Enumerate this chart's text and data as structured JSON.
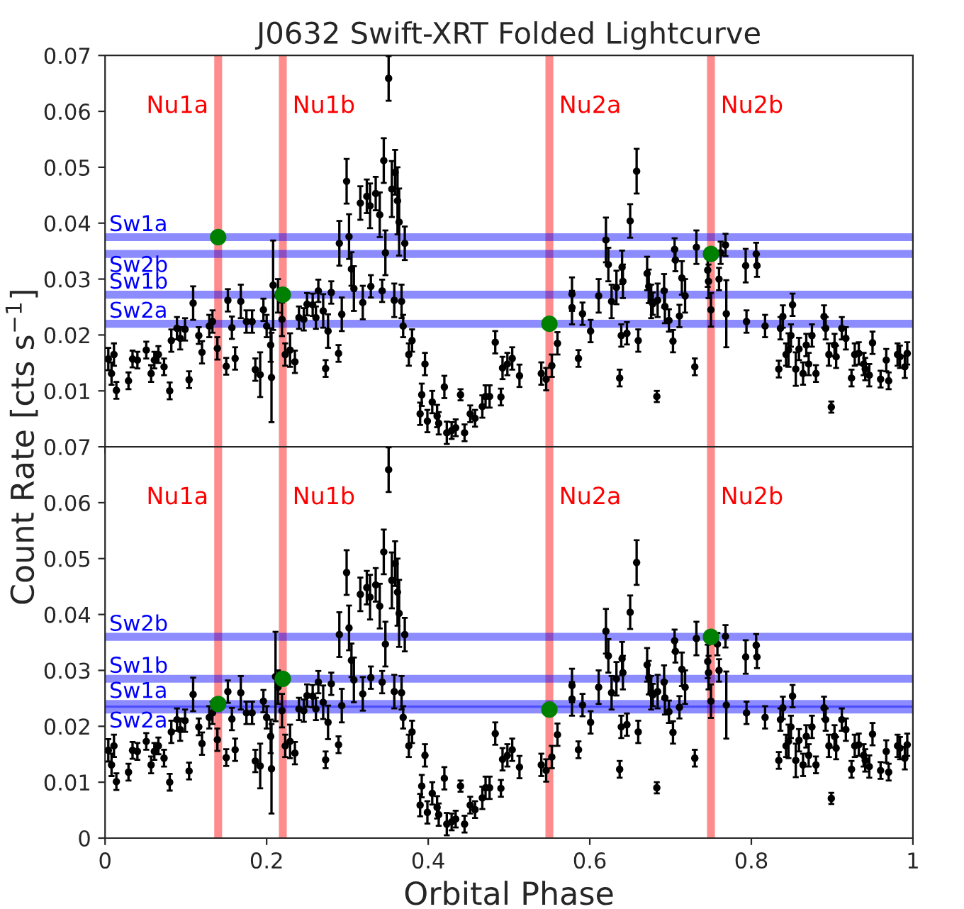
{
  "chart_data": [
    {
      "type": "scatter",
      "title": "J0632 Swift-XRT Folded Lightcurve",
      "ylabel": "Count Rate [cts s$^{−1}$]",
      "xlim": [
        0,
        1
      ],
      "ylim": [
        0,
        0.07
      ],
      "yticks": [
        0.01,
        0.02,
        0.03,
        0.04,
        0.05,
        0.06,
        0.07
      ],
      "xticks": [
        0,
        0.2,
        0.4,
        0.6,
        0.8,
        1
      ],
      "tick_labels": "y",
      "marker": "circle",
      "series": [
        {
          "color": "#000000",
          "x": [
            0.004,
            0.008,
            0.011,
            0.014,
            0.029,
            0.034,
            0.04,
            0.051,
            0.057,
            0.061,
            0.066,
            0.073,
            0.08,
            0.082,
            0.089,
            0.093,
            0.099,
            0.104,
            0.109,
            0.116,
            0.12,
            0.129,
            0.133,
            0.139,
            0.15,
            0.152,
            0.157,
            0.161,
            0.168,
            0.175,
            0.182,
            0.186,
            0.192,
            0.196,
            0.2,
            0.205,
            0.206,
            0.208,
            0.214,
            0.219,
            0.223,
            0.229,
            0.235,
            0.24,
            0.246,
            0.25,
            0.257,
            0.261,
            0.264,
            0.27,
            0.273,
            0.276,
            0.28,
            0.289,
            0.29,
            0.293,
            0.299,
            0.302,
            0.305,
            0.308,
            0.316,
            0.319,
            0.324,
            0.328,
            0.329,
            0.335,
            0.34,
            0.343,
            0.345,
            0.347,
            0.351,
            0.355,
            0.358,
            0.359,
            0.362,
            0.364,
            0.367,
            0.369,
            0.371,
            0.376,
            0.38,
            0.39,
            0.392,
            0.396,
            0.399,
            0.405,
            0.411,
            0.413,
            0.42,
            0.423,
            0.429,
            0.434,
            0.44,
            0.445,
            0.452,
            0.458,
            0.467,
            0.471,
            0.476,
            0.483,
            0.49,
            0.492,
            0.498,
            0.504,
            0.513,
            0.54,
            0.546,
            0.553,
            0.56,
            0.578,
            0.578,
            0.586,
            0.591,
            0.601,
            0.611,
            0.62,
            0.623,
            0.627,
            0.633,
            0.637,
            0.639,
            0.64,
            0.641,
            0.646,
            0.65,
            0.658,
            0.66,
            0.671,
            0.673,
            0.676,
            0.678,
            0.683,
            0.684,
            0.692,
            0.693,
            0.698,
            0.703,
            0.705,
            0.706,
            0.711,
            0.714,
            0.718,
            0.73,
            0.732,
            0.746,
            0.747,
            0.75,
            0.762,
            0.76,
            0.768,
            0.769,
            0.793,
            0.794,
            0.806,
            0.807,
            0.817,
            0.834,
            0.836,
            0.839,
            0.843,
            0.846,
            0.849,
            0.851,
            0.855,
            0.859,
            0.864,
            0.868,
            0.871,
            0.875,
            0.88,
            0.89,
            0.892,
            0.896,
            0.899,
            0.903,
            0.905,
            0.912,
            0.917,
            0.924,
            0.928,
            0.933,
            0.939,
            0.941,
            0.946,
            0.95,
            0.96,
            0.967,
            0.97,
            0.981,
            0.984,
            0.99,
            0.993
          ],
          "values": [
            0.0157,
            0.0131,
            0.0165,
            0.0101,
            0.0118,
            0.0157,
            0.0155,
            0.0173,
            0.0131,
            0.0155,
            0.0165,
            0.0143,
            0.01,
            0.019,
            0.0212,
            0.0194,
            0.021,
            0.012,
            0.0257,
            0.0199,
            0.0169,
            0.0216,
            0.0224,
            0.0176,
            0.0144,
            0.0262,
            0.0213,
            0.0158,
            0.026,
            0.0224,
            0.0224,
            0.0138,
            0.0129,
            0.0245,
            0.0216,
            0.0182,
            0.0124,
            0.0289,
            0.027,
            0.0228,
            0.0165,
            0.0173,
            0.0152,
            0.0231,
            0.0228,
            0.0255,
            0.0254,
            0.0231,
            0.0279,
            0.0243,
            0.014,
            0.0207,
            0.0276,
            0.0167,
            0.0364,
            0.0237,
            0.0475,
            0.0376,
            0.0318,
            0.0283,
            0.0436,
            0.0258,
            0.0448,
            0.0431,
            0.0287,
            0.0453,
            0.0415,
            0.0279,
            0.0512,
            0.0347,
            0.0659,
            0.0461,
            0.0262,
            0.0491,
            0.044,
            0.0402,
            0.026,
            0.0216,
            0.0364,
            0.0165,
            0.019,
            0.0059,
            0.0093,
            0.0148,
            0.0046,
            0.008,
            0.0055,
            0.0042,
            0.0107,
            0.0025,
            0.0029,
            0.0034,
            0.0093,
            0.0025,
            0.0059,
            0.0051,
            0.0072,
            0.009,
            0.009,
            0.0187,
            0.0089,
            0.0141,
            0.0148,
            0.0158,
            0.0127,
            0.0131,
            0.0121,
            0.0145,
            0.0185,
            0.0273,
            0.0249,
            0.0158,
            0.0238,
            0.0207,
            0.027,
            0.037,
            0.0326,
            0.026,
            0.0285,
            0.0123,
            0.0199,
            0.0321,
            0.0296,
            0.0203,
            0.0404,
            0.0493,
            0.019,
            0.031,
            0.0287,
            0.026,
            0.0256,
            0.009,
            0.0262,
            0.0279,
            0.0251,
            0.0226,
            0.0189,
            0.0353,
            0.0334,
            0.0234,
            0.0302,
            0.027,
            0.0143,
            0.0357,
            0.0316,
            0.0296,
            0.0245,
            0.0347,
            0.03,
            0.0361,
            0.0238,
            0.0324,
            0.0224,
            0.0345,
            0.0324,
            0.0216,
            0.0139,
            0.0212,
            0.0233,
            0.0165,
            0.0173,
            0.0199,
            0.0254,
            0.0139,
            0.0175,
            0.0131,
            0.0182,
            0.0148,
            0.0199,
            0.0131,
            0.0233,
            0.0212,
            0.0165,
            0.0071,
            0.0182,
            0.0161,
            0.0212,
            0.0194,
            0.0123,
            0.0165,
            0.0167,
            0.0148,
            0.0139,
            0.0128,
            0.0186,
            0.0121,
            0.0155,
            0.0118,
            0.0165,
            0.0161,
            0.0143,
            0.0167
          ],
          "errors": [
            0.002,
            0.002,
            0.002,
            0.0015,
            0.0015,
            0.0015,
            0.0015,
            0.0015,
            0.0015,
            0.0015,
            0.0015,
            0.0015,
            0.0015,
            0.002,
            0.002,
            0.002,
            0.002,
            0.0015,
            0.003,
            0.0015,
            0.002,
            0.002,
            0.002,
            0.002,
            0.0015,
            0.002,
            0.002,
            0.002,
            0.003,
            0.002,
            0.002,
            0.002,
            0.004,
            0.002,
            0.002,
            0.003,
            0.008,
            0.008,
            0.003,
            0.003,
            0.002,
            0.003,
            0.002,
            0.002,
            0.002,
            0.002,
            0.002,
            0.002,
            0.002,
            0.003,
            0.0015,
            0.003,
            0.002,
            0.0015,
            0.004,
            0.003,
            0.004,
            0.004,
            0.003,
            0.004,
            0.003,
            0.003,
            0.003,
            0.004,
            0.002,
            0.003,
            0.004,
            0.002,
            0.004,
            0.004,
            0.004,
            0.005,
            0.003,
            0.004,
            0.006,
            0.006,
            0.003,
            0.002,
            0.003,
            0.002,
            0.002,
            0.002,
            0.002,
            0.002,
            0.002,
            0.002,
            0.002,
            0.002,
            0.002,
            0.002,
            0.0015,
            0.0015,
            0.001,
            0.0015,
            0.0015,
            0.0015,
            0.002,
            0.002,
            0.002,
            0.002,
            0.0015,
            0.002,
            0.002,
            0.002,
            0.002,
            0.002,
            0.002,
            0.002,
            0.002,
            0.003,
            0.003,
            0.0015,
            0.002,
            0.002,
            0.003,
            0.004,
            0.003,
            0.003,
            0.003,
            0.0015,
            0.002,
            0.003,
            0.003,
            0.002,
            0.003,
            0.004,
            0.002,
            0.003,
            0.003,
            0.003,
            0.002,
            0.001,
            0.003,
            0.003,
            0.003,
            0.002,
            0.002,
            0.002,
            0.002,
            0.002,
            0.003,
            0.003,
            0.0015,
            0.003,
            0.003,
            0.003,
            0.003,
            0.002,
            0.002,
            0.002,
            0.006,
            0.003,
            0.002,
            0.002,
            0.002,
            0.002,
            0.0015,
            0.002,
            0.002,
            0.002,
            0.003,
            0.002,
            0.002,
            0.003,
            0.002,
            0.002,
            0.002,
            0.002,
            0.002,
            0.0015,
            0.002,
            0.002,
            0.002,
            0.001,
            0.002,
            0.002,
            0.002,
            0.002,
            0.0015,
            0.002,
            0.002,
            0.002,
            0.002,
            0.002,
            0.002,
            0.0015,
            0.002,
            0.0015,
            0.002,
            0.002,
            0.002,
            0.002
          ]
        },
        {
          "color": "#008000",
          "x": [
            0.14,
            0.22,
            0.55,
            0.75
          ],
          "values": [
            0.0375,
            0.0272,
            0.022,
            0.0345
          ]
        }
      ],
      "ref_lines": [
        {
          "axis": "x",
          "value": 0.14,
          "label": "Nu1a",
          "color": "#ff0000"
        },
        {
          "axis": "x",
          "value": 0.22,
          "label": "Nu1b",
          "color": "#ff0000"
        },
        {
          "axis": "x",
          "value": 0.55,
          "label": "Nu2a",
          "color": "#ff0000"
        },
        {
          "axis": "x",
          "value": 0.75,
          "label": "Nu2b",
          "color": "#ff0000"
        },
        {
          "axis": "y",
          "value": 0.0375,
          "label": "Sw1a",
          "color": "#0000ff"
        },
        {
          "axis": "y",
          "value": 0.0345,
          "label": "Sw2b",
          "color": "#0000ff"
        },
        {
          "axis": "y",
          "value": 0.0272,
          "label": "Sw1b",
          "color": "#0000ff"
        },
        {
          "axis": "y",
          "value": 0.022,
          "label": "Sw2a",
          "color": "#0000ff"
        }
      ]
    },
    {
      "type": "scatter",
      "xlabel": "Orbital Phase",
      "xlim": [
        0,
        1
      ],
      "ylim": [
        0,
        0.07
      ],
      "yticks": [
        0,
        0.01,
        0.02,
        0.03,
        0.04,
        0.05,
        0.06,
        0.07
      ],
      "xticks": [
        0,
        0.2,
        0.4,
        0.6,
        0.8,
        1
      ],
      "marker": "circle",
      "series": [
        {
          "color": "#000000",
          "x": [
            0.004,
            0.008,
            0.011,
            0.014,
            0.029,
            0.034,
            0.04,
            0.051,
            0.057,
            0.061,
            0.066,
            0.073,
            0.08,
            0.082,
            0.089,
            0.093,
            0.099,
            0.104,
            0.109,
            0.116,
            0.12,
            0.129,
            0.133,
            0.139,
            0.15,
            0.152,
            0.157,
            0.161,
            0.168,
            0.175,
            0.182,
            0.186,
            0.192,
            0.196,
            0.2,
            0.205,
            0.206,
            0.211,
            0.214,
            0.219,
            0.223,
            0.229,
            0.235,
            0.24,
            0.246,
            0.25,
            0.257,
            0.261,
            0.264,
            0.27,
            0.273,
            0.276,
            0.28,
            0.289,
            0.29,
            0.293,
            0.299,
            0.302,
            0.305,
            0.308,
            0.316,
            0.319,
            0.324,
            0.328,
            0.329,
            0.335,
            0.34,
            0.343,
            0.345,
            0.347,
            0.351,
            0.355,
            0.358,
            0.359,
            0.362,
            0.364,
            0.367,
            0.369,
            0.371,
            0.376,
            0.38,
            0.39,
            0.392,
            0.396,
            0.399,
            0.405,
            0.411,
            0.413,
            0.42,
            0.423,
            0.429,
            0.434,
            0.44,
            0.445,
            0.452,
            0.458,
            0.467,
            0.471,
            0.476,
            0.483,
            0.49,
            0.492,
            0.498,
            0.504,
            0.513,
            0.54,
            0.546,
            0.553,
            0.56,
            0.578,
            0.578,
            0.586,
            0.591,
            0.601,
            0.611,
            0.62,
            0.623,
            0.627,
            0.633,
            0.637,
            0.639,
            0.64,
            0.641,
            0.646,
            0.65,
            0.658,
            0.66,
            0.671,
            0.673,
            0.676,
            0.678,
            0.683,
            0.684,
            0.692,
            0.693,
            0.698,
            0.703,
            0.705,
            0.706,
            0.711,
            0.714,
            0.718,
            0.73,
            0.732,
            0.746,
            0.747,
            0.75,
            0.758,
            0.76,
            0.768,
            0.769,
            0.793,
            0.794,
            0.806,
            0.807,
            0.817,
            0.834,
            0.836,
            0.839,
            0.843,
            0.846,
            0.849,
            0.851,
            0.855,
            0.859,
            0.864,
            0.868,
            0.871,
            0.875,
            0.88,
            0.89,
            0.892,
            0.896,
            0.899,
            0.903,
            0.905,
            0.912,
            0.917,
            0.924,
            0.928,
            0.933,
            0.939,
            0.941,
            0.946,
            0.95,
            0.96,
            0.967,
            0.97,
            0.981,
            0.984,
            0.99,
            0.993
          ],
          "values": [
            0.0157,
            0.0131,
            0.0165,
            0.0101,
            0.0118,
            0.0157,
            0.0155,
            0.0173,
            0.0131,
            0.0155,
            0.0165,
            0.0143,
            0.01,
            0.019,
            0.0212,
            0.0194,
            0.021,
            0.012,
            0.0257,
            0.0199,
            0.0169,
            0.0216,
            0.0224,
            0.0176,
            0.0144,
            0.0262,
            0.0213,
            0.0158,
            0.026,
            0.0224,
            0.0224,
            0.0138,
            0.0129,
            0.0245,
            0.0216,
            0.0182,
            0.0124,
            0.0289,
            0.027,
            0.0228,
            0.0165,
            0.0173,
            0.0152,
            0.0231,
            0.0228,
            0.0255,
            0.0254,
            0.0231,
            0.0279,
            0.0243,
            0.014,
            0.0207,
            0.0276,
            0.0167,
            0.0364,
            0.0237,
            0.0475,
            0.0376,
            0.0318,
            0.0283,
            0.0436,
            0.0258,
            0.0448,
            0.0431,
            0.0287,
            0.0453,
            0.0415,
            0.0279,
            0.0512,
            0.0347,
            0.0659,
            0.0461,
            0.0262,
            0.0491,
            0.044,
            0.0402,
            0.026,
            0.0216,
            0.0364,
            0.0165,
            0.019,
            0.0059,
            0.0093,
            0.0148,
            0.0046,
            0.008,
            0.0055,
            0.0042,
            0.0107,
            0.0025,
            0.0029,
            0.0034,
            0.0093,
            0.0025,
            0.0059,
            0.0051,
            0.0072,
            0.009,
            0.009,
            0.0187,
            0.0089,
            0.0141,
            0.0148,
            0.0158,
            0.0127,
            0.0131,
            0.0121,
            0.0145,
            0.0185,
            0.0273,
            0.0249,
            0.0158,
            0.0238,
            0.0207,
            0.027,
            0.037,
            0.0326,
            0.026,
            0.0285,
            0.0123,
            0.0199,
            0.0321,
            0.0296,
            0.0203,
            0.0404,
            0.0493,
            0.019,
            0.031,
            0.0287,
            0.026,
            0.0256,
            0.009,
            0.0262,
            0.0279,
            0.0251,
            0.0226,
            0.0189,
            0.0353,
            0.0334,
            0.0234,
            0.0302,
            0.027,
            0.0143,
            0.0357,
            0.0316,
            0.0296,
            0.0245,
            0.0347,
            0.03,
            0.0361,
            0.0238,
            0.0324,
            0.0224,
            0.0345,
            0.0324,
            0.0216,
            0.0139,
            0.0212,
            0.0233,
            0.0165,
            0.0173,
            0.0199,
            0.0254,
            0.0139,
            0.0175,
            0.0131,
            0.0182,
            0.0148,
            0.0199,
            0.0131,
            0.0233,
            0.0212,
            0.0165,
            0.0071,
            0.0182,
            0.0161,
            0.0212,
            0.0194,
            0.0123,
            0.0165,
            0.0167,
            0.0148,
            0.0139,
            0.0128,
            0.0186,
            0.0121,
            0.0155,
            0.0118,
            0.0165,
            0.0161,
            0.0143,
            0.0167
          ],
          "errors": [
            0.002,
            0.002,
            0.002,
            0.0015,
            0.0015,
            0.0015,
            0.0015,
            0.0015,
            0.0015,
            0.0015,
            0.0015,
            0.0015,
            0.0015,
            0.002,
            0.002,
            0.002,
            0.002,
            0.0015,
            0.003,
            0.0015,
            0.002,
            0.002,
            0.002,
            0.002,
            0.0015,
            0.002,
            0.002,
            0.002,
            0.003,
            0.002,
            0.002,
            0.002,
            0.004,
            0.002,
            0.002,
            0.003,
            0.008,
            0.008,
            0.003,
            0.003,
            0.002,
            0.003,
            0.002,
            0.002,
            0.002,
            0.002,
            0.002,
            0.002,
            0.002,
            0.003,
            0.0015,
            0.003,
            0.002,
            0.0015,
            0.004,
            0.003,
            0.004,
            0.004,
            0.003,
            0.004,
            0.003,
            0.003,
            0.003,
            0.004,
            0.002,
            0.003,
            0.004,
            0.002,
            0.004,
            0.004,
            0.004,
            0.005,
            0.003,
            0.004,
            0.006,
            0.006,
            0.003,
            0.002,
            0.003,
            0.002,
            0.002,
            0.002,
            0.002,
            0.002,
            0.002,
            0.002,
            0.002,
            0.002,
            0.002,
            0.002,
            0.0015,
            0.0015,
            0.001,
            0.0015,
            0.0015,
            0.0015,
            0.002,
            0.002,
            0.002,
            0.002,
            0.0015,
            0.002,
            0.002,
            0.002,
            0.002,
            0.002,
            0.002,
            0.002,
            0.002,
            0.003,
            0.003,
            0.0015,
            0.002,
            0.002,
            0.003,
            0.004,
            0.003,
            0.003,
            0.003,
            0.0015,
            0.002,
            0.003,
            0.003,
            0.002,
            0.003,
            0.004,
            0.002,
            0.003,
            0.003,
            0.003,
            0.002,
            0.001,
            0.003,
            0.003,
            0.003,
            0.002,
            0.002,
            0.002,
            0.002,
            0.002,
            0.003,
            0.003,
            0.0015,
            0.003,
            0.003,
            0.003,
            0.003,
            0.002,
            0.002,
            0.002,
            0.006,
            0.003,
            0.002,
            0.002,
            0.002,
            0.002,
            0.0015,
            0.002,
            0.002,
            0.002,
            0.003,
            0.002,
            0.002,
            0.003,
            0.002,
            0.002,
            0.002,
            0.002,
            0.002,
            0.0015,
            0.002,
            0.002,
            0.002,
            0.001,
            0.002,
            0.002,
            0.002,
            0.002,
            0.0015,
            0.002,
            0.002,
            0.002,
            0.002,
            0.002,
            0.002,
            0.0015,
            0.002,
            0.0015,
            0.002,
            0.002,
            0.002,
            0.002
          ]
        },
        {
          "color": "#008000",
          "x": [
            0.14,
            0.22,
            0.55,
            0.75
          ],
          "values": [
            0.024,
            0.0285,
            0.023,
            0.036
          ]
        }
      ],
      "ref_lines": [
        {
          "axis": "x",
          "value": 0.14,
          "label": "Nu1a",
          "color": "#ff0000"
        },
        {
          "axis": "x",
          "value": 0.22,
          "label": "Nu1b",
          "color": "#ff0000"
        },
        {
          "axis": "x",
          "value": 0.55,
          "label": "Nu2a",
          "color": "#ff0000"
        },
        {
          "axis": "x",
          "value": 0.75,
          "label": "Nu2b",
          "color": "#ff0000"
        },
        {
          "axis": "y",
          "value": 0.036,
          "label": "Sw2b",
          "color": "#0000ff"
        },
        {
          "axis": "y",
          "value": 0.0285,
          "label": "Sw1b",
          "color": "#0000ff"
        },
        {
          "axis": "y",
          "value": 0.024,
          "label": "Sw1a",
          "color": "#0000ff"
        },
        {
          "axis": "y",
          "value": 0.023,
          "label": "Sw2a",
          "color": "#0000ff"
        }
      ]
    }
  ]
}
